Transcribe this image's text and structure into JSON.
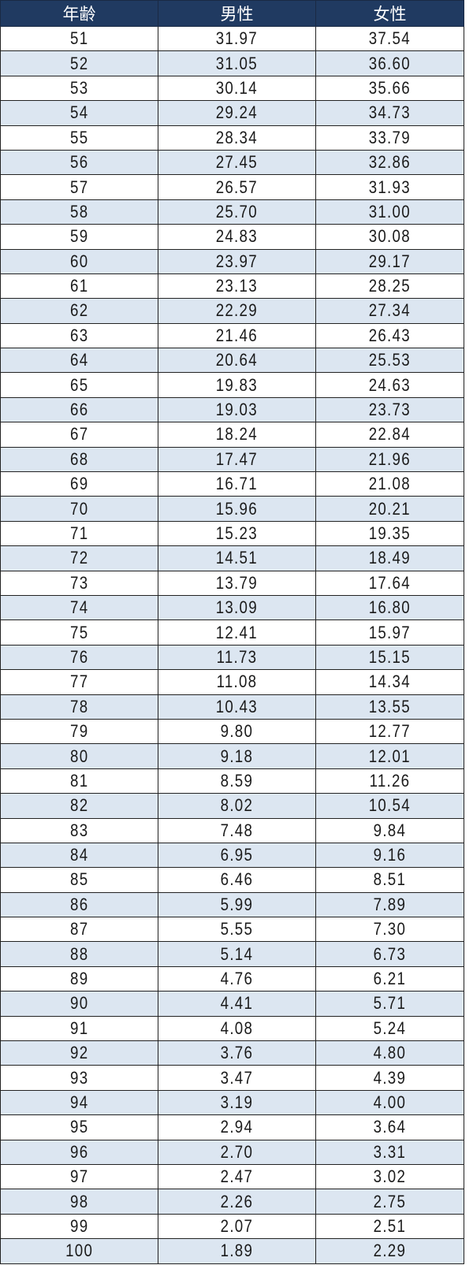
{
  "table": {
    "headers": [
      "年齢",
      "男性",
      "女性"
    ],
    "colors": {
      "header_bg": "#203a61",
      "band_bg": "#dce6f1"
    },
    "rows": [
      [
        "51",
        "31.97",
        "37.54"
      ],
      [
        "52",
        "31.05",
        "36.60"
      ],
      [
        "53",
        "30.14",
        "35.66"
      ],
      [
        "54",
        "29.24",
        "34.73"
      ],
      [
        "55",
        "28.34",
        "33.79"
      ],
      [
        "56",
        "27.45",
        "32.86"
      ],
      [
        "57",
        "26.57",
        "31.93"
      ],
      [
        "58",
        "25.70",
        "31.00"
      ],
      [
        "59",
        "24.83",
        "30.08"
      ],
      [
        "60",
        "23.97",
        "29.17"
      ],
      [
        "61",
        "23.13",
        "28.25"
      ],
      [
        "62",
        "22.29",
        "27.34"
      ],
      [
        "63",
        "21.46",
        "26.43"
      ],
      [
        "64",
        "20.64",
        "25.53"
      ],
      [
        "65",
        "19.83",
        "24.63"
      ],
      [
        "66",
        "19.03",
        "23.73"
      ],
      [
        "67",
        "18.24",
        "22.84"
      ],
      [
        "68",
        "17.47",
        "21.96"
      ],
      [
        "69",
        "16.71",
        "21.08"
      ],
      [
        "70",
        "15.96",
        "20.21"
      ],
      [
        "71",
        "15.23",
        "19.35"
      ],
      [
        "72",
        "14.51",
        "18.49"
      ],
      [
        "73",
        "13.79",
        "17.64"
      ],
      [
        "74",
        "13.09",
        "16.80"
      ],
      [
        "75",
        "12.41",
        "15.97"
      ],
      [
        "76",
        "11.73",
        "15.15"
      ],
      [
        "77",
        "11.08",
        "14.34"
      ],
      [
        "78",
        "10.43",
        "13.55"
      ],
      [
        "79",
        "9.80",
        "12.77"
      ],
      [
        "80",
        "9.18",
        "12.01"
      ],
      [
        "81",
        "8.59",
        "11.26"
      ],
      [
        "82",
        "8.02",
        "10.54"
      ],
      [
        "83",
        "7.48",
        "9.84"
      ],
      [
        "84",
        "6.95",
        "9.16"
      ],
      [
        "85",
        "6.46",
        "8.51"
      ],
      [
        "86",
        "5.99",
        "7.89"
      ],
      [
        "87",
        "5.55",
        "7.30"
      ],
      [
        "88",
        "5.14",
        "6.73"
      ],
      [
        "89",
        "4.76",
        "6.21"
      ],
      [
        "90",
        "4.41",
        "5.71"
      ],
      [
        "91",
        "4.08",
        "5.24"
      ],
      [
        "92",
        "3.76",
        "4.80"
      ],
      [
        "93",
        "3.47",
        "4.39"
      ],
      [
        "94",
        "3.19",
        "4.00"
      ],
      [
        "95",
        "2.94",
        "3.64"
      ],
      [
        "96",
        "2.70",
        "3.31"
      ],
      [
        "97",
        "2.47",
        "3.02"
      ],
      [
        "98",
        "2.26",
        "2.75"
      ],
      [
        "99",
        "2.07",
        "2.51"
      ],
      [
        "100",
        "1.89",
        "2.29"
      ]
    ]
  }
}
